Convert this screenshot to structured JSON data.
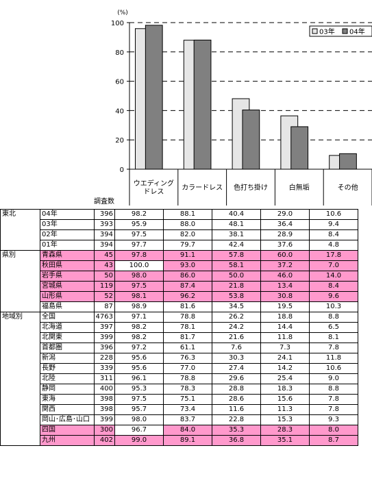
{
  "chart_data": {
    "type": "bar",
    "ylabel": "(%)",
    "ylim": [
      0,
      100
    ],
    "yticks": [
      0,
      20,
      40,
      60,
      80,
      100
    ],
    "categories": [
      "ウエディングドレス",
      "カラードレス",
      "色打ち掛け",
      "白無垢",
      "その他"
    ],
    "series": [
      {
        "name": "03年",
        "values": [
          95.9,
          88.0,
          48.1,
          36.4,
          9.4
        ],
        "color": "#e6e6e6"
      },
      {
        "name": "04年",
        "values": [
          98.2,
          88.1,
          40.4,
          29.0,
          10.6
        ],
        "color": "#808080"
      }
    ],
    "legend": "top-right",
    "grid": "dashed-horizontal"
  },
  "table": {
    "count_header": "調査数",
    "column_headers": [
      [
        "ウエディング",
        "ドレス"
      ],
      [
        "カラードレス"
      ],
      [
        "色打ち掛け"
      ],
      [
        "白無垢"
      ],
      [
        "その他"
      ]
    ],
    "highlight_color": "#ff99cc",
    "groups": [
      {
        "label": "東北",
        "rows": [
          {
            "name": "04年",
            "count": "396",
            "values": [
              "98.2",
              "88.1",
              "40.4",
              "29.0",
              "10.6"
            ],
            "hl": false
          },
          {
            "name": "03年",
            "count": "393",
            "values": [
              "95.9",
              "88.0",
              "48.1",
              "36.4",
              "9.4"
            ],
            "hl": false
          },
          {
            "name": "02年",
            "count": "394",
            "values": [
              "97.5",
              "82.0",
              "38.1",
              "28.9",
              "8.4"
            ],
            "hl": false
          },
          {
            "name": "01年",
            "count": "394",
            "values": [
              "97.7",
              "79.7",
              "42.4",
              "37.6",
              "4.8"
            ],
            "hl": false
          }
        ]
      },
      {
        "label": "県別",
        "rows": [
          {
            "name": "青森県",
            "count": "45",
            "values": [
              "97.8",
              "91.1",
              "57.8",
              "60.0",
              "17.8"
            ],
            "hl": true
          },
          {
            "name": "秋田県",
            "count": "43",
            "values": [
              "100.0",
              "93.0",
              "58.1",
              "37.2",
              "7.0"
            ],
            "hl": true,
            "hl_skip": [
              0
            ]
          },
          {
            "name": "岩手県",
            "count": "50",
            "values": [
              "98.0",
              "86.0",
              "50.0",
              "46.0",
              "14.0"
            ],
            "hl": true
          },
          {
            "name": "宮城県",
            "count": "119",
            "values": [
              "97.5",
              "87.4",
              "21.8",
              "13.4",
              "8.4"
            ],
            "hl": true
          },
          {
            "name": "山形県",
            "count": "52",
            "values": [
              "98.1",
              "96.2",
              "53.8",
              "30.8",
              "9.6"
            ],
            "hl": true
          },
          {
            "name": "福島県",
            "count": "87",
            "values": [
              "98.9",
              "81.6",
              "34.5",
              "19.5",
              "10.3"
            ],
            "hl": false
          }
        ]
      },
      {
        "label": "地域別",
        "rows": [
          {
            "name": "全国",
            "count": "4763",
            "values": [
              "97.1",
              "78.8",
              "26.2",
              "18.8",
              "8.8"
            ],
            "hl": false
          },
          {
            "name": "北海道",
            "count": "397",
            "values": [
              "98.2",
              "78.1",
              "24.2",
              "14.4",
              "6.5"
            ],
            "hl": false
          },
          {
            "name": "北関東",
            "count": "399",
            "values": [
              "98.2",
              "81.7",
              "21.6",
              "11.8",
              "8.1"
            ],
            "hl": false
          },
          {
            "name": "首都圏",
            "count": "396",
            "values": [
              "97.2",
              "61.1",
              "7.6",
              "7.3",
              "7.8"
            ],
            "hl": false
          },
          {
            "name": "新潟",
            "count": "228",
            "values": [
              "95.6",
              "76.3",
              "30.3",
              "24.1",
              "11.8"
            ],
            "hl": false
          },
          {
            "name": "長野",
            "count": "339",
            "values": [
              "95.6",
              "77.0",
              "27.4",
              "14.2",
              "10.6"
            ],
            "hl": false
          },
          {
            "name": "北陸",
            "count": "311",
            "values": [
              "96.1",
              "78.8",
              "29.6",
              "25.4",
              "9.0"
            ],
            "hl": false
          },
          {
            "name": "静岡",
            "count": "400",
            "values": [
              "95.3",
              "78.3",
              "28.8",
              "18.3",
              "8.8"
            ],
            "hl": false
          },
          {
            "name": "東海",
            "count": "398",
            "values": [
              "97.5",
              "75.1",
              "28.6",
              "15.6",
              "7.8"
            ],
            "hl": false
          },
          {
            "name": "関西",
            "count": "398",
            "values": [
              "95.7",
              "73.4",
              "11.6",
              "11.3",
              "7.8"
            ],
            "hl": false
          },
          {
            "name": "岡山･広島･山口",
            "count": "399",
            "values": [
              "98.0",
              "83.7",
              "22.8",
              "15.3",
              "9.3"
            ],
            "hl": false
          },
          {
            "name": "四国",
            "count": "300",
            "values": [
              "96.7",
              "84.0",
              "35.3",
              "28.3",
              "8.0"
            ],
            "hl": true,
            "hl_skip": [
              0
            ]
          },
          {
            "name": "九州",
            "count": "402",
            "values": [
              "99.0",
              "89.1",
              "36.8",
              "35.1",
              "8.7"
            ],
            "hl": true
          }
        ]
      }
    ]
  }
}
